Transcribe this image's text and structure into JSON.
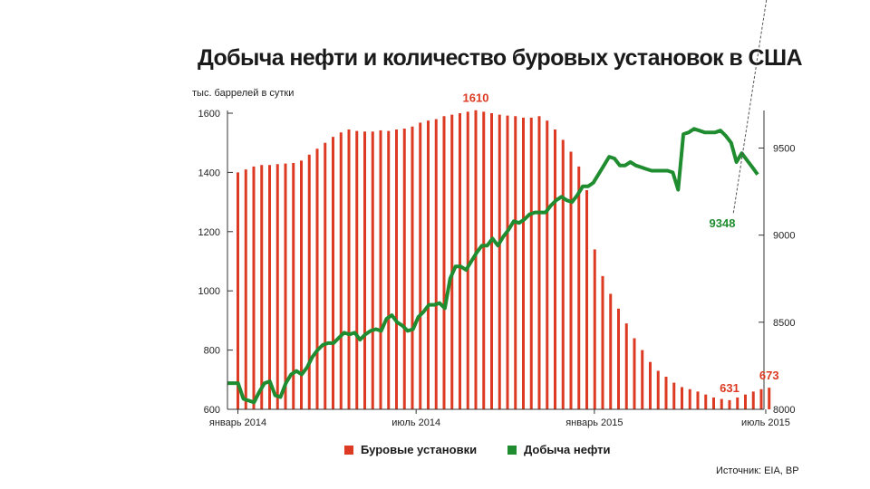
{
  "chart_data": {
    "type": "bar+line",
    "title": "Добыча нефти и количество буровых установок в США",
    "left_axis": {
      "label": "тыс. баррелей в сутки",
      "ylim": [
        600,
        1600
      ],
      "ticks": [
        "1600",
        "1400",
        "1200",
        "1000",
        "800",
        "600"
      ],
      "tick_values": [
        1600,
        1400,
        1200,
        1000,
        800,
        600
      ]
    },
    "right_axis": {
      "ylim": [
        8000,
        9700
      ],
      "ticks": [
        "9500",
        "9000",
        "8500",
        "8000"
      ],
      "tick_values": [
        9500,
        9000,
        8500,
        8000
      ]
    },
    "x_ticks": [
      {
        "label": "январь 2014",
        "week": 0
      },
      {
        "label": "июль 2014",
        "week": 26
      },
      {
        "label": "январь 2015",
        "week": 52
      },
      {
        "label": "июль 2015",
        "week": 77
      }
    ],
    "series": [
      {
        "name": "Буровые установки",
        "axis": "left",
        "kind": "bar",
        "color": "#dc3a22",
        "values": [
          1400,
          1410,
          1420,
          1425,
          1425,
          1428,
          1430,
          1432,
          1440,
          1460,
          1480,
          1500,
          1520,
          1535,
          1545,
          1540,
          1538,
          1538,
          1542,
          1540,
          1545,
          1548,
          1555,
          1568,
          1575,
          1580,
          1590,
          1595,
          1600,
          1605,
          1610,
          1605,
          1600,
          1595,
          1592,
          1590,
          1585,
          1585,
          1590,
          1575,
          1545,
          1510,
          1470,
          1420,
          1340,
          1140,
          1050,
          990,
          940,
          890,
          840,
          800,
          760,
          730,
          710,
          690,
          675,
          668,
          660,
          650,
          640,
          635,
          631,
          640,
          650,
          660,
          668,
          673
        ]
      },
      {
        "name": "Добыча нефти",
        "axis": "right",
        "kind": "line",
        "color": "#1f8c2f",
        "values": [
          8150,
          8150,
          8150,
          8060,
          8050,
          8040,
          8100,
          8150,
          8160,
          8080,
          8070,
          8150,
          8200,
          8220,
          8200,
          8240,
          8300,
          8340,
          8370,
          8380,
          8380,
          8410,
          8440,
          8430,
          8440,
          8400,
          8430,
          8450,
          8460,
          8450,
          8520,
          8540,
          8500,
          8480,
          8450,
          8460,
          8530,
          8560,
          8600,
          8600,
          8610,
          8580,
          8750,
          8820,
          8820,
          8800,
          8850,
          8900,
          8940,
          8940,
          8980,
          8940,
          8990,
          9030,
          9080,
          9070,
          9090,
          9120,
          9130,
          9130,
          9130,
          9170,
          9200,
          9220,
          9200,
          9190,
          9230,
          9280,
          9280,
          9300,
          9350,
          9400,
          9450,
          9440,
          9400,
          9400,
          9420,
          9400,
          9390,
          9380,
          9370,
          9370,
          9370,
          9370,
          9360,
          9260,
          9580,
          9590,
          9610,
          9600,
          9590,
          9590,
          9590,
          9600,
          9570,
          9530,
          9420,
          9470,
          9430,
          9390,
          9348
        ]
      }
    ],
    "annotations": [
      {
        "text": "1610",
        "series": "Буровые установки",
        "index": 30
      },
      {
        "text": "631",
        "series": "Буровые установки",
        "index": 62
      },
      {
        "text": "673",
        "series": "Буровые установки",
        "index": 67
      },
      {
        "text": "9348",
        "series": "Добыча нефти",
        "index": 102
      }
    ],
    "legend": [
      {
        "label": "Буровые установки",
        "color": "#dc3a22"
      },
      {
        "label": "Добыча нефти",
        "color": "#1f8c2f"
      }
    ],
    "legend_position": "bottom",
    "grid": false
  },
  "source": "Источник: EIA, BP"
}
